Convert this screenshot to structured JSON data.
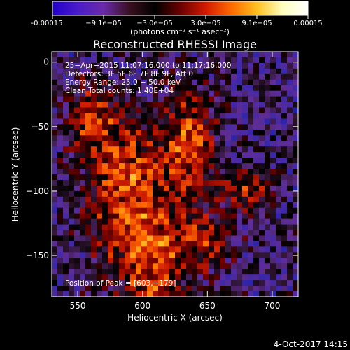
{
  "window": {
    "footer_date": "4-Oct-2017 14:15"
  },
  "colorbar": {
    "colors": [
      "#2200cc",
      "#4a1cc8",
      "#6a2aa8",
      "#3a1020",
      "#000000",
      "#6a0000",
      "#d21a00",
      "#ff6a00",
      "#ffc020",
      "#ffffc0",
      "#ffffff"
    ],
    "ticks": [
      "-0.00015",
      "−9.1e−05",
      "−3.0e−05",
      "3.0e−05",
      "9.1e−05",
      "0.00015"
    ],
    "unit_label": "(photons cm⁻² s⁻¹ asec⁻²)"
  },
  "chart_data": {
    "type": "heatmap",
    "title": "Reconstructed RHESSI Image",
    "xlabel": "Heliocentric X (arcsec)",
    "ylabel": "Heliocentric Y (arcsec)",
    "xlim": [
      530,
      720
    ],
    "ylim": [
      -182,
      8
    ],
    "x_ticks": [
      550,
      600,
      650,
      700
    ],
    "y_ticks": [
      0,
      -50,
      -100,
      -150
    ],
    "x_tick_labels": [
      "550",
      "600",
      "650",
      "700"
    ],
    "y_tick_labels": [
      "0",
      "−50",
      "−100",
      "−150"
    ],
    "value_range": [
      -0.00015,
      0.00015
    ],
    "annotations": [
      "25−Apr−2015 11:07:16.000 to 11:17:16.000",
      "Detectors: 3F 5F 6F 7F 8F 9F, Att 0",
      "Energy Range: 25.0 − 50.0 keV",
      "Clean     Total counts: 1.40E+04"
    ],
    "peak_label": "Position of Peak = [603,−179]",
    "peak_position": [
      603,
      -179
    ]
  }
}
